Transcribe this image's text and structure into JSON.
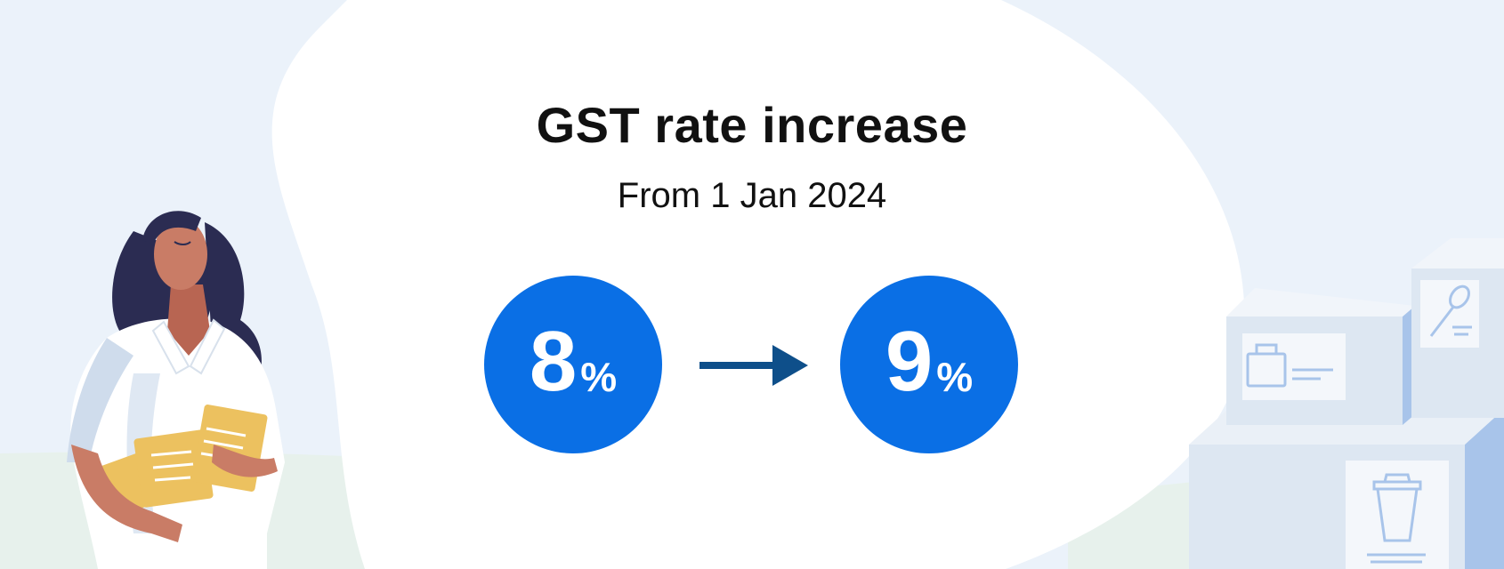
{
  "headline": "GST rate increase",
  "subheadline": "From 1 Jan 2024",
  "rates": {
    "old": {
      "value": "8",
      "unit": "%"
    },
    "new": {
      "value": "9",
      "unit": "%"
    }
  },
  "colors": {
    "accent": "#0a6fe5",
    "arrow": "#0e4f8a",
    "background": "#ebf2fa",
    "blob": "#ffffff",
    "folder": "#ecc15f",
    "box": "#dde7f2",
    "box_side": "#a8c4ea"
  },
  "icons": [
    "person-illustration",
    "documents-icon",
    "arrow-right-icon",
    "shopping-bag-icon",
    "spoon-icon",
    "cup-icon"
  ]
}
